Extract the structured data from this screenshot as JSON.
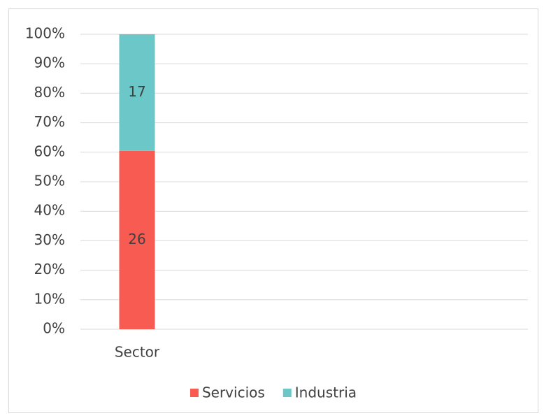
{
  "chart_data": {
    "type": "bar",
    "stack": "percent",
    "categories": [
      "Sector"
    ],
    "series": [
      {
        "name": "Servicios",
        "color": "#f75b52",
        "values": [
          26
        ]
      },
      {
        "name": "Industria",
        "color": "#6cc8c8",
        "values": [
          17
        ]
      }
    ],
    "ylim": [
      0,
      100
    ],
    "yticks": [
      {
        "value": 0,
        "label": "0%"
      },
      {
        "value": 10,
        "label": "10%"
      },
      {
        "value": 20,
        "label": "20%"
      },
      {
        "value": 30,
        "label": "30%"
      },
      {
        "value": 40,
        "label": "40%"
      },
      {
        "value": 50,
        "label": "50%"
      },
      {
        "value": 60,
        "label": "60%"
      },
      {
        "value": 70,
        "label": "70%"
      },
      {
        "value": 80,
        "label": "80%"
      },
      {
        "value": 90,
        "label": "90%"
      },
      {
        "value": 100,
        "label": "100%"
      }
    ],
    "grid": true,
    "legend": "bottom"
  }
}
